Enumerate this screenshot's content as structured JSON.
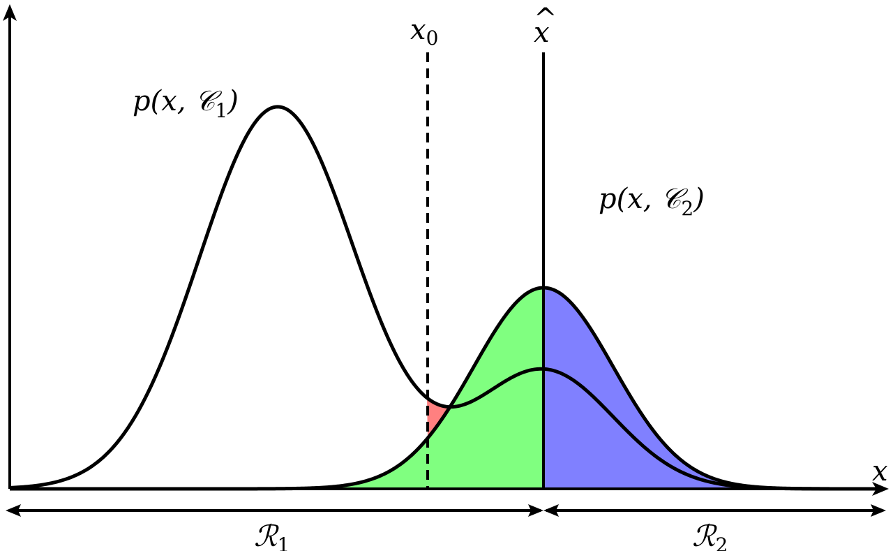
{
  "labels": {
    "p1": {
      "pre": "p(x, ",
      "sym": "𝒞",
      "sub": "1",
      "post": ")"
    },
    "p2": {
      "pre": "p(x, ",
      "sym": "𝒞",
      "sub": "2",
      "post": ")"
    },
    "x0": {
      "main": "x",
      "sub": "0"
    },
    "xhat": {
      "main": "x",
      "hat": "^"
    },
    "x_axis": "x",
    "r1": {
      "main": "ℛ",
      "sub": "1"
    },
    "r2": {
      "main": "ℛ",
      "sub": "2"
    }
  },
  "colors": {
    "red_region": "#ff8080",
    "green_region": "#80ff80",
    "blue_region": "#8080ff",
    "stroke": "#000000"
  }
}
